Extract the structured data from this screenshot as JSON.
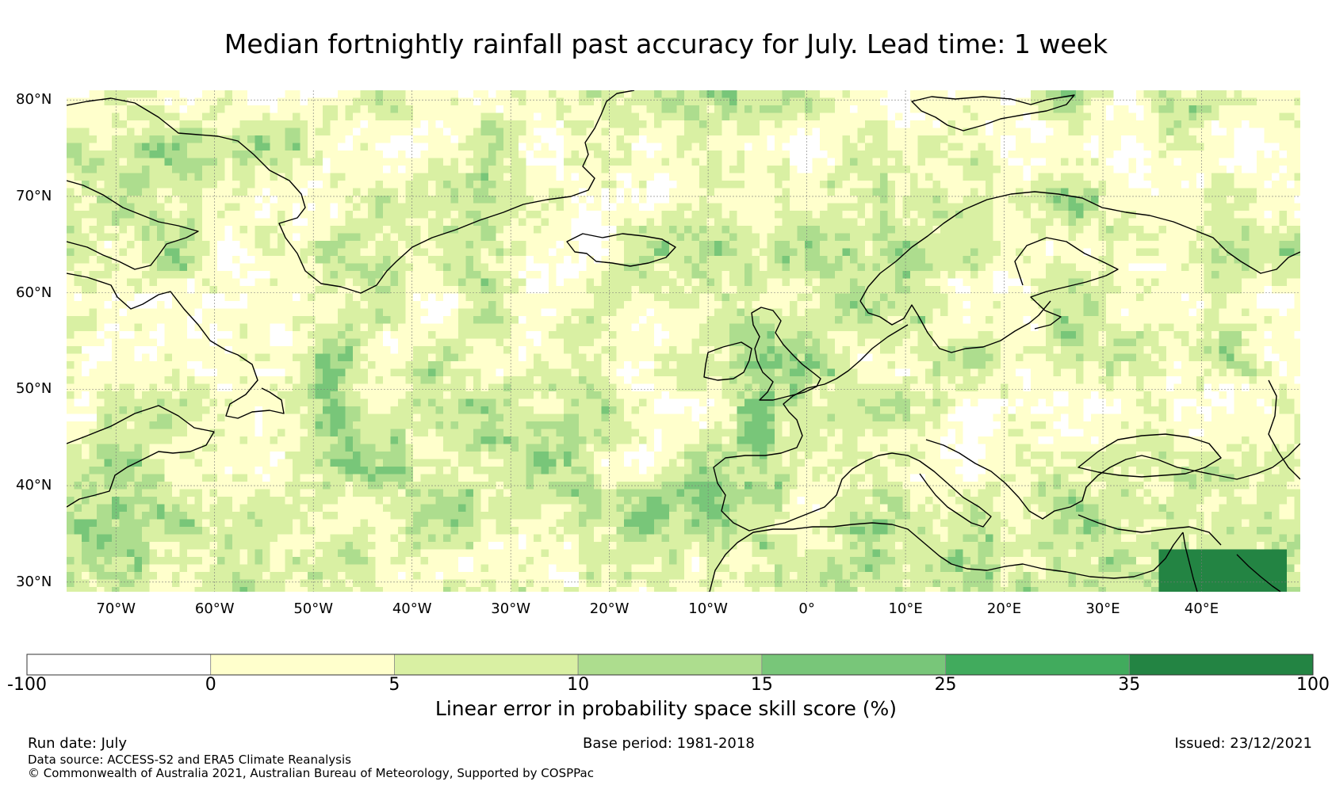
{
  "title": "Median fortnightly rainfall past accuracy for July. Lead time: 1 week",
  "map": {
    "extent": {
      "lon": [
        -75,
        50
      ],
      "lat": [
        29,
        81
      ]
    },
    "lat_labels": [
      {
        "value": 80,
        "text": "80°N"
      },
      {
        "value": 70,
        "text": "70°N"
      },
      {
        "value": 60,
        "text": "60°N"
      },
      {
        "value": 50,
        "text": "50°N"
      },
      {
        "value": 40,
        "text": "40°N"
      },
      {
        "value": 30,
        "text": "30°N"
      }
    ],
    "lon_labels": [
      {
        "value": -70,
        "text": "70°W"
      },
      {
        "value": -60,
        "text": "60°W"
      },
      {
        "value": -50,
        "text": "50°W"
      },
      {
        "value": -40,
        "text": "40°W"
      },
      {
        "value": -30,
        "text": "30°W"
      },
      {
        "value": -20,
        "text": "20°W"
      },
      {
        "value": -10,
        "text": "10°W"
      },
      {
        "value": 0,
        "text": "0°"
      },
      {
        "value": 10,
        "text": "10°E"
      },
      {
        "value": 20,
        "text": "20°E"
      },
      {
        "value": 30,
        "text": "30°E"
      },
      {
        "value": 40,
        "text": "40°E"
      }
    ],
    "colors": [
      "#ffffff",
      "#ffffcc",
      "#d9f0a3",
      "#addd8e",
      "#78c679",
      "#41ab5d",
      "#238443"
    ]
  },
  "colorbar": {
    "ticks": [
      "-100",
      "0",
      "5",
      "10",
      "15",
      "25",
      "35",
      "100"
    ],
    "colors": [
      "#ffffff",
      "#ffffcc",
      "#d9f0a3",
      "#addd8e",
      "#78c679",
      "#41ab5d",
      "#238443"
    ],
    "title": "Linear error in probability space skill score (%)"
  },
  "footer": {
    "run_date": "Run date: July",
    "base_period": "Base period: 1981-2018",
    "issued": "Issued: 23/12/2021",
    "data_source": "Data source: ACCESS-S2 and ERA5 Climate Reanalysis",
    "copyright": "© Commonwealth of Australia 2021, Australian Bureau of Meteorology, Supported by COSPPac"
  }
}
